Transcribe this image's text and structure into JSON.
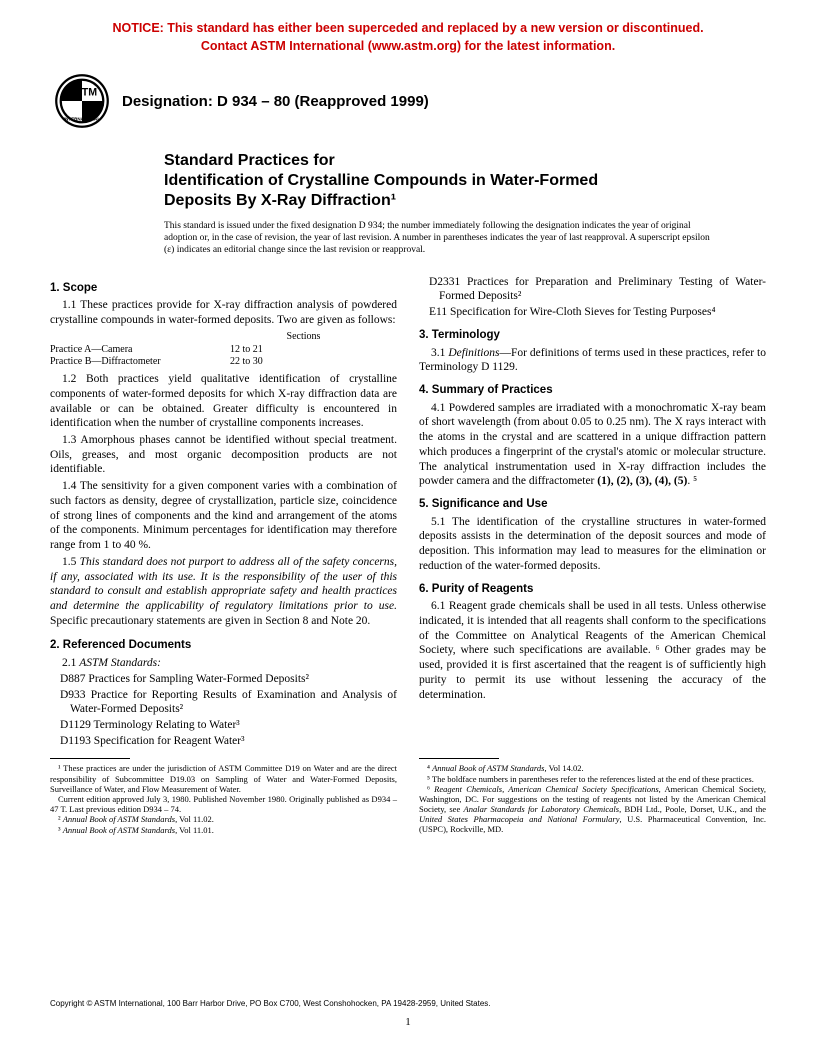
{
  "notice": {
    "line1": "NOTICE: This standard has either been superceded and replaced by a new version or discontinued.",
    "line2": "Contact ASTM International (www.astm.org) for the latest information.",
    "color": "#cc0000"
  },
  "logo": {
    "label_top": "ASTM",
    "label_bottom": "INTERNATIONAL"
  },
  "designation": "Designation: D 934 – 80 (Reapproved 1999)",
  "title": {
    "line1": "Standard Practices for",
    "line2": "Identification of Crystalline Compounds in Water-Formed",
    "line3": "Deposits By X-Ray Diffraction¹"
  },
  "issuance": "This standard is issued under the fixed designation D 934; the number immediately following the designation indicates the year of original adoption or, in the case of revision, the year of last revision. A number in parentheses indicates the year of last reapproval. A superscript epsilon (ε) indicates an editorial change since the last revision or reapproval.",
  "left": {
    "s1_heading": "1. Scope",
    "s1_1": "1.1 These practices provide for X-ray diffraction analysis of powdered crystalline compounds in water-formed deposits. Two are given as follows:",
    "practice_table": {
      "header": "Sections",
      "rowA_label": "Practice A—Camera",
      "rowA_val": "12 to 21",
      "rowB_label": "Practice B—Diffractometer",
      "rowB_val": "22 to 30"
    },
    "s1_2": "1.2 Both practices yield qualitative identification of crystalline components of water-formed deposits for which X-ray diffraction data are available or can be obtained. Greater difficulty is encountered in identification when the number of crystalline components increases.",
    "s1_3": "1.3 Amorphous phases cannot be identified without special treatment. Oils, greases, and most organic decomposition products are not identifiable.",
    "s1_4": "1.4 The sensitivity for a given component varies with a combination of such factors as density, degree of crystallization, particle size, coincidence of strong lines of components and the kind and arrangement of the atoms of the components. Minimum percentages for identification may therefore range from 1 to 40 %.",
    "s1_5a": "1.5 ",
    "s1_5b": "This standard does not purport to address all of the safety concerns, if any, associated with its use. It is the responsibility of the user of this standard to consult and establish appropriate safety and health practices and determine the applicability of regulatory limitations prior to use.",
    "s1_5c": " Specific precautionary statements are given in Section 8 and Note 20.",
    "s2_heading": "2. Referenced Documents",
    "s2_1": "2.1 ",
    "s2_1_label": "ASTM Standards:",
    "refs": {
      "d887": "D887 Practices for Sampling Water-Formed Deposits²",
      "d933": "D933 Practice for Reporting Results of Examination and Analysis of Water-Formed Deposits²",
      "d1129": "D1129 Terminology Relating to Water³",
      "d1193": "D1193 Specification for Reagent Water³"
    },
    "fn1": "¹ These practices are under the jurisdiction of ASTM Committee D19 on Water and are the direct responsibility of Subcommittee D19.03 on Sampling of Water and Water-Formed Deposits, Surveillance of Water, and Flow Measurement of Water.",
    "fn1b": "Current edition approved July 3, 1980. Published November 1980. Originally published as D934 – 47 T. Last previous edition D934 – 74.",
    "fn2": "² Annual Book of ASTM Standards, Vol 11.02.",
    "fn3": "³ Annual Book of ASTM Standards, Vol 11.01."
  },
  "right": {
    "refs": {
      "d2331": "D2331 Practices for Preparation and Preliminary Testing of Water-Formed Deposits²",
      "e11": "E11 Specification for Wire-Cloth Sieves for Testing Purposes⁴"
    },
    "s3_heading": "3. Terminology",
    "s3_1a": "3.1 ",
    "s3_1b": "Definitions",
    "s3_1c": "—For definitions of terms used in these practices, refer to Terminology D 1129.",
    "s4_heading": "4. Summary of Practices",
    "s4_1": "4.1 Powdered samples are irradiated with a monochromatic X-ray beam of short wavelength (from about 0.05 to 0.25 nm). The X rays interact with the atoms in the crystal and are scattered in a unique diffraction pattern which produces a fingerprint of the crystal's atomic or molecular structure. The analytical instrumentation used in X-ray diffraction includes the powder camera and the diffractometer (1), (2), (3), (4), (5). ⁵",
    "s5_heading": "5. Significance and Use",
    "s5_1": "5.1 The identification of the crystalline structures in water-formed deposits assists in the determination of the deposit sources and mode of deposition. This information may lead to measures for the elimination or reduction of the water-formed deposits.",
    "s6_heading": "6. Purity of Reagents",
    "s6_1": "6.1 Reagent grade chemicals shall be used in all tests. Unless otherwise indicated, it is intended that all reagents shall conform to the specifications of the Committee on Analytical Reagents of the American Chemical Society, where such specifications are available. ⁶ Other grades may be used, provided it is first ascertained that the reagent is of sufficiently high purity to permit its use without lessening the accuracy of the determination.",
    "fn4": "⁴ Annual Book of ASTM Standards, Vol 14.02.",
    "fn5": "⁵ The boldface numbers in parentheses refer to the references listed at the end of these practices.",
    "fn6": "⁶ Reagent Chemicals, American Chemical Society Specifications, American Chemical Society, Washington, DC. For suggestions on the testing of reagents not listed by the American Chemical Society, see Analar Standards for Laboratory Chemicals, BDH Ltd., Poole, Dorset, U.K., and the United States Pharmacopeia and National Formulary, U.S. Pharmaceutical Convention, Inc. (USPC), Rockville, MD."
  },
  "copyright": "Copyright © ASTM International, 100 Barr Harbor Drive, PO Box C700, West Conshohocken, PA 19428-2959, United States.",
  "page_number": "1"
}
